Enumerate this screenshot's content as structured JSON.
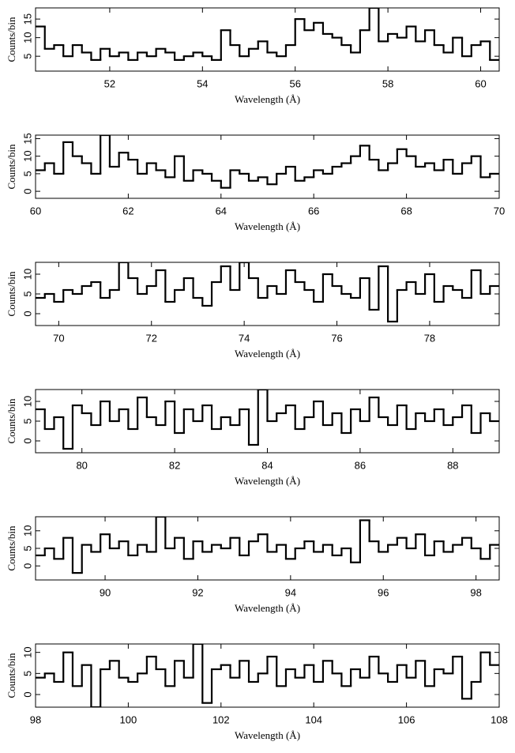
{
  "chart_data": [
    {
      "type": "histogram",
      "xlabel": "Wavelength (Å)",
      "ylabel": "Counts/bin",
      "color": "#000000",
      "xlim": [
        50.4,
        60.4
      ],
      "xticks": [
        52,
        54,
        56,
        58,
        60
      ],
      "ylim": [
        1,
        18
      ],
      "yticks": [
        5,
        10,
        15
      ],
      "bins": [
        50.4,
        50.6,
        50.8,
        51.0,
        51.2,
        51.4,
        51.6,
        51.8,
        52.0,
        52.2,
        52.4,
        52.6,
        52.8,
        53.0,
        53.2,
        53.4,
        53.6,
        53.8,
        54.0,
        54.2,
        54.4,
        54.6,
        54.8,
        55.0,
        55.2,
        55.4,
        55.6,
        55.8,
        56.0,
        56.2,
        56.4,
        56.6,
        56.8,
        57.0,
        57.2,
        57.4,
        57.6,
        57.8,
        58.0,
        58.2,
        58.4,
        58.6,
        58.8,
        59.0,
        59.2,
        59.4,
        59.6,
        59.8,
        60.0,
        60.2,
        60.4
      ],
      "values": [
        13,
        7,
        8,
        5,
        8,
        6,
        4,
        7,
        5,
        6,
        4,
        6,
        5,
        7,
        6,
        4,
        5,
        6,
        5,
        4,
        12,
        8,
        5,
        7,
        9,
        6,
        5,
        8,
        15,
        12,
        14,
        11,
        10,
        8,
        6,
        12,
        18,
        9,
        11,
        10,
        13,
        9,
        12,
        8,
        6,
        10,
        5,
        8,
        9,
        4
      ]
    },
    {
      "type": "histogram",
      "xlabel": "Wavelength (Å)",
      "ylabel": "Counts/bin",
      "color": "#000000",
      "xlim": [
        60,
        70
      ],
      "xticks": [
        60,
        62,
        64,
        66,
        68,
        70
      ],
      "ylim": [
        -2,
        16
      ],
      "yticks": [
        0,
        5,
        10,
        15
      ],
      "bins": [
        60.0,
        60.2,
        60.4,
        60.6,
        60.8,
        61.0,
        61.2,
        61.4,
        61.6,
        61.8,
        62.0,
        62.2,
        62.4,
        62.6,
        62.8,
        63.0,
        63.2,
        63.4,
        63.6,
        63.8,
        64.0,
        64.2,
        64.4,
        64.6,
        64.8,
        65.0,
        65.2,
        65.4,
        65.6,
        65.8,
        66.0,
        66.2,
        66.4,
        66.6,
        66.8,
        67.0,
        67.2,
        67.4,
        67.6,
        67.8,
        68.0,
        68.2,
        68.4,
        68.6,
        68.8,
        69.0,
        69.2,
        69.4,
        69.6,
        69.8,
        70.0
      ],
      "values": [
        6,
        8,
        5,
        14,
        10,
        8,
        5,
        16,
        7,
        11,
        9,
        5,
        8,
        6,
        4,
        10,
        3,
        6,
        5,
        3,
        1,
        6,
        5,
        3,
        4,
        2,
        5,
        7,
        3,
        4,
        6,
        5,
        7,
        8,
        10,
        13,
        9,
        6,
        8,
        12,
        10,
        7,
        8,
        6,
        9,
        5,
        8,
        10,
        4,
        5
      ]
    },
    {
      "type": "histogram",
      "xlabel": "Wavelength (Å)",
      "ylabel": "Counts/bin",
      "color": "#000000",
      "xlim": [
        69.5,
        79.5
      ],
      "xticks": [
        70,
        72,
        74,
        76,
        78
      ],
      "ylim": [
        -3,
        13
      ],
      "yticks": [
        0,
        5,
        10
      ],
      "bins": [
        69.5,
        69.7,
        69.9,
        70.1,
        70.3,
        70.5,
        70.7,
        70.9,
        71.1,
        71.3,
        71.5,
        71.7,
        71.9,
        72.1,
        72.3,
        72.5,
        72.7,
        72.9,
        73.1,
        73.3,
        73.5,
        73.7,
        73.9,
        74.1,
        74.3,
        74.5,
        74.7,
        74.9,
        75.1,
        75.3,
        75.5,
        75.7,
        75.9,
        76.1,
        76.3,
        76.5,
        76.7,
        76.9,
        77.1,
        77.3,
        77.5,
        77.7,
        77.9,
        78.1,
        78.3,
        78.5,
        78.7,
        78.9,
        79.1,
        79.3,
        79.5
      ],
      "values": [
        4,
        5,
        3,
        6,
        5,
        7,
        8,
        4,
        6,
        13,
        9,
        5,
        7,
        11,
        3,
        6,
        9,
        4,
        2,
        8,
        12,
        6,
        13,
        9,
        4,
        7,
        5,
        11,
        8,
        6,
        3,
        10,
        7,
        5,
        4,
        9,
        1,
        12,
        -2,
        6,
        8,
        5,
        10,
        3,
        7,
        6,
        4,
        11,
        5,
        7
      ]
    },
    {
      "type": "histogram",
      "xlabel": "Wavelength (Å)",
      "ylabel": "Counts/bin",
      "color": "#000000",
      "xlim": [
        79,
        89
      ],
      "xticks": [
        80,
        82,
        84,
        86,
        88
      ],
      "ylim": [
        -3,
        13
      ],
      "yticks": [
        0,
        5,
        10
      ],
      "bins": [
        79.0,
        79.2,
        79.4,
        79.6,
        79.8,
        80.0,
        80.2,
        80.4,
        80.6,
        80.8,
        81.0,
        81.2,
        81.4,
        81.6,
        81.8,
        82.0,
        82.2,
        82.4,
        82.6,
        82.8,
        83.0,
        83.2,
        83.4,
        83.6,
        83.8,
        84.0,
        84.2,
        84.4,
        84.6,
        84.8,
        85.0,
        85.2,
        85.4,
        85.6,
        85.8,
        86.0,
        86.2,
        86.4,
        86.6,
        86.8,
        87.0,
        87.2,
        87.4,
        87.6,
        87.8,
        88.0,
        88.2,
        88.4,
        88.6,
        88.8,
        89.0
      ],
      "values": [
        8,
        3,
        6,
        -2,
        9,
        7,
        4,
        10,
        5,
        8,
        3,
        11,
        6,
        4,
        10,
        2,
        8,
        5,
        9,
        3,
        6,
        4,
        8,
        -1,
        13,
        5,
        7,
        9,
        3,
        6,
        10,
        4,
        7,
        2,
        8,
        5,
        11,
        6,
        4,
        9,
        3,
        7,
        5,
        8,
        4,
        6,
        9,
        2,
        7,
        5
      ]
    },
    {
      "type": "histogram",
      "xlabel": "Wavelength (Å)",
      "ylabel": "Counts/bin",
      "color": "#000000",
      "xlim": [
        88.5,
        98.5
      ],
      "xticks": [
        90,
        92,
        94,
        96,
        98
      ],
      "ylim": [
        -4,
        14
      ],
      "yticks": [
        0,
        5,
        10
      ],
      "bins": [
        88.5,
        88.7,
        88.9,
        89.1,
        89.3,
        89.5,
        89.7,
        89.9,
        90.1,
        90.3,
        90.5,
        90.7,
        90.9,
        91.1,
        91.3,
        91.5,
        91.7,
        91.9,
        92.1,
        92.3,
        92.5,
        92.7,
        92.9,
        93.1,
        93.3,
        93.5,
        93.7,
        93.9,
        94.1,
        94.3,
        94.5,
        94.7,
        94.9,
        95.1,
        95.3,
        95.5,
        95.7,
        95.9,
        96.1,
        96.3,
        96.5,
        96.7,
        96.9,
        97.1,
        97.3,
        97.5,
        97.7,
        97.9,
        98.1,
        98.3,
        98.5
      ],
      "values": [
        3,
        5,
        2,
        8,
        -2,
        6,
        4,
        9,
        5,
        7,
        3,
        6,
        4,
        14,
        5,
        8,
        2,
        7,
        4,
        6,
        5,
        8,
        3,
        7,
        9,
        4,
        6,
        2,
        5,
        7,
        4,
        6,
        3,
        5,
        1,
        13,
        7,
        4,
        6,
        8,
        5,
        9,
        3,
        7,
        4,
        6,
        8,
        5,
        2,
        6
      ]
    },
    {
      "type": "histogram",
      "xlabel": "Wavelength (Å)",
      "ylabel": "Counts/bin",
      "color": "#000000",
      "xlim": [
        98,
        108
      ],
      "xticks": [
        98,
        100,
        102,
        104,
        106,
        108
      ],
      "ylim": [
        -3,
        12
      ],
      "yticks": [
        0,
        5,
        10
      ],
      "bins": [
        98.0,
        98.2,
        98.4,
        98.6,
        98.8,
        99.0,
        99.2,
        99.4,
        99.6,
        99.8,
        100.0,
        100.2,
        100.4,
        100.6,
        100.8,
        101.0,
        101.2,
        101.4,
        101.6,
        101.8,
        102.0,
        102.2,
        102.4,
        102.6,
        102.8,
        103.0,
        103.2,
        103.4,
        103.6,
        103.8,
        104.0,
        104.2,
        104.4,
        104.6,
        104.8,
        105.0,
        105.2,
        105.4,
        105.6,
        105.8,
        106.0,
        106.2,
        106.4,
        106.6,
        106.8,
        107.0,
        107.2,
        107.4,
        107.6,
        107.8,
        108.0
      ],
      "values": [
        4,
        5,
        3,
        10,
        2,
        7,
        -3,
        6,
        8,
        4,
        3,
        5,
        9,
        6,
        2,
        8,
        4,
        12,
        -2,
        6,
        7,
        4,
        8,
        3,
        5,
        9,
        2,
        6,
        4,
        7,
        3,
        8,
        5,
        2,
        6,
        4,
        9,
        5,
        3,
        7,
        4,
        8,
        2,
        6,
        5,
        9,
        -1,
        3,
        10,
        7
      ]
    }
  ]
}
